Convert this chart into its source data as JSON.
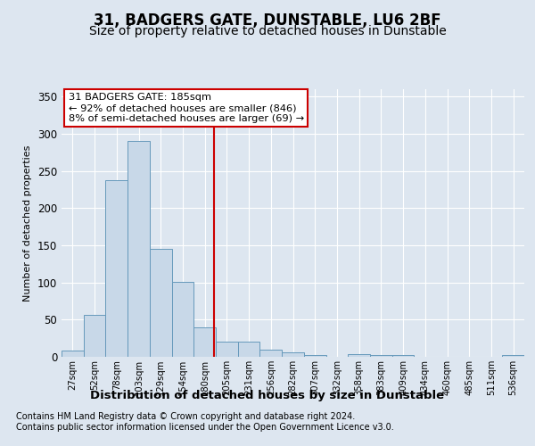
{
  "title": "31, BADGERS GATE, DUNSTABLE, LU6 2BF",
  "subtitle": "Size of property relative to detached houses in Dunstable",
  "xlabel": "Distribution of detached houses by size in Dunstable",
  "ylabel": "Number of detached properties",
  "bar_labels": [
    "27sqm",
    "52sqm",
    "78sqm",
    "103sqm",
    "129sqm",
    "154sqm",
    "180sqm",
    "205sqm",
    "231sqm",
    "256sqm",
    "282sqm",
    "307sqm",
    "332sqm",
    "358sqm",
    "383sqm",
    "409sqm",
    "434sqm",
    "460sqm",
    "485sqm",
    "511sqm",
    "536sqm"
  ],
  "bar_values": [
    8,
    57,
    238,
    290,
    145,
    101,
    40,
    20,
    20,
    10,
    6,
    3,
    0,
    4,
    2,
    2,
    0,
    0,
    0,
    0,
    2
  ],
  "bar_color": "#c8d8e8",
  "bar_edge_color": "#6699bb",
  "ylim": [
    0,
    360
  ],
  "yticks": [
    0,
    50,
    100,
    150,
    200,
    250,
    300,
    350
  ],
  "vline_pos": 6.4,
  "annotation_title": "31 BADGERS GATE: 185sqm",
  "annotation_line1": "← 92% of detached houses are smaller (846)",
  "annotation_line2": "8% of semi-detached houses are larger (69) →",
  "footer_line1": "Contains HM Land Registry data © Crown copyright and database right 2024.",
  "footer_line2": "Contains public sector information licensed under the Open Government Licence v3.0.",
  "bg_color": "#dde6f0",
  "plot_bg": "#dde6f0",
  "grid_color": "#ffffff",
  "title_fontsize": 12,
  "subtitle_fontsize": 10,
  "annotation_box_edge": "#cc0000",
  "vline_color": "#cc0000",
  "footer_fontsize": 7
}
